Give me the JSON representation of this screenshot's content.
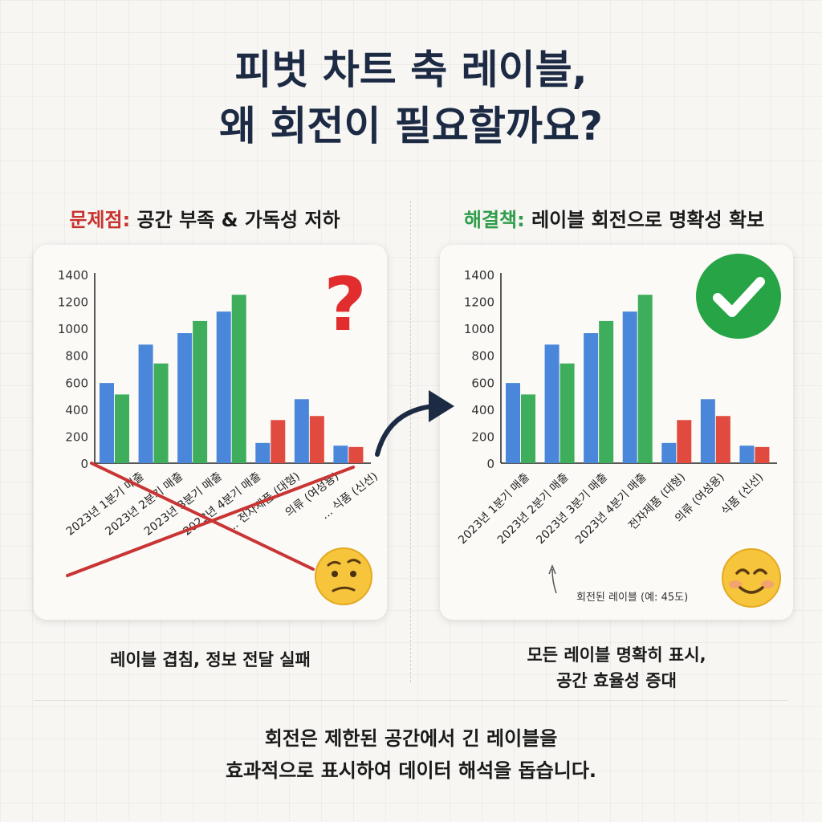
{
  "title": {
    "line1": "피벗 차트 축 레이블,",
    "line2": "왜 회전이 필요할까요?"
  },
  "left_panel": {
    "tag": "문제점:",
    "heading": " 공간 부족 & 가독성 저하",
    "caption": "레이블 겹침, 정보 전달 실패",
    "icon": "question-mark-icon",
    "emoji": "worried-face-icon"
  },
  "right_panel": {
    "tag": "해결책:",
    "heading": " 레이블 회전으로 명확성 확보",
    "caption_line1": "모든 레이블 명확히 표시,",
    "caption_line2": "공간 효율성 증대",
    "annotation": "회전된 레이블 (예: 45도)",
    "icon": "check-mark-icon",
    "emoji": "smiling-face-icon"
  },
  "bottom": {
    "line1": "회전은 제한된 공간에서 긴 레이블을",
    "line2": "효과적으로 표시하여 데이터 해석을 돕습니다."
  },
  "colors": {
    "blue": "#4a86d9",
    "green": "#3fae5c",
    "red": "#e04a3f",
    "problem": "#c8322f",
    "solution": "#2e9d4a",
    "title": "#1c2a44"
  },
  "chart_data": [
    {
      "type": "bar",
      "categories": [
        "2023년 1분기 매출",
        "2023년 2분기 매출",
        "2023년 3분기 매출",
        "2023년 4분기 매출",
        "전자제품 (대형)",
        "의류 (여성용)",
        "식품 (신선)"
      ],
      "tick_labels": [
        "2023년 1분기 매출",
        "2023년 2분기 매출",
        "2023년 3분기 매출",
        "2023년 4분기 매출",
        "... 전자제품 (대형)",
        "의류 (여성용)",
        "... 식품 (신선)"
      ],
      "series": [
        {
          "values": [
            595,
            880,
            965,
            1125,
            150,
            475,
            130
          ]
        },
        {
          "values": [
            510,
            740,
            1055,
            1250,
            320,
            350,
            120
          ]
        }
      ],
      "bar_colors": [
        [
          "#4a86d9",
          "#4a86d9",
          "#4a86d9",
          "#4a86d9",
          "#4a86d9",
          "#4a86d9",
          "#4a86d9"
        ],
        [
          "#3fae5c",
          "#3fae5c",
          "#3fae5c",
          "#3fae5c",
          "#e04a3f",
          "#e04a3f",
          "#e04a3f"
        ]
      ],
      "yticks": [
        0,
        200,
        400,
        600,
        800,
        1000,
        1200,
        1400
      ],
      "ylim": [
        0,
        1400
      ],
      "label_style": "overlapping"
    },
    {
      "type": "bar",
      "categories": [
        "2023년 1분기 매출",
        "2023년 2분기 매출",
        "2023년 3분기 매출",
        "2023년 4분기 매출",
        "전자제품 (대형)",
        "의류 (여성용)",
        "식품 (신선)"
      ],
      "tick_labels": [
        "2023년 1분기 매출",
        "2023년 2분기 매출",
        "2023년 3분기 매출",
        "2023년 4분기 매출",
        "전자제품 (대형)",
        "의류 (여성용)",
        "식품 (신선)"
      ],
      "series": [
        {
          "values": [
            595,
            880,
            965,
            1125,
            150,
            475,
            130
          ]
        },
        {
          "values": [
            510,
            740,
            1055,
            1250,
            320,
            350,
            120
          ]
        }
      ],
      "bar_colors": [
        [
          "#4a86d9",
          "#4a86d9",
          "#4a86d9",
          "#4a86d9",
          "#4a86d9",
          "#4a86d9",
          "#4a86d9"
        ],
        [
          "#3fae5c",
          "#3fae5c",
          "#3fae5c",
          "#3fae5c",
          "#e04a3f",
          "#e04a3f",
          "#e04a3f"
        ]
      ],
      "yticks": [
        0,
        200,
        400,
        600,
        800,
        1000,
        1200,
        1400
      ],
      "ylim": [
        0,
        1400
      ],
      "label_style": "rotated-45"
    }
  ]
}
